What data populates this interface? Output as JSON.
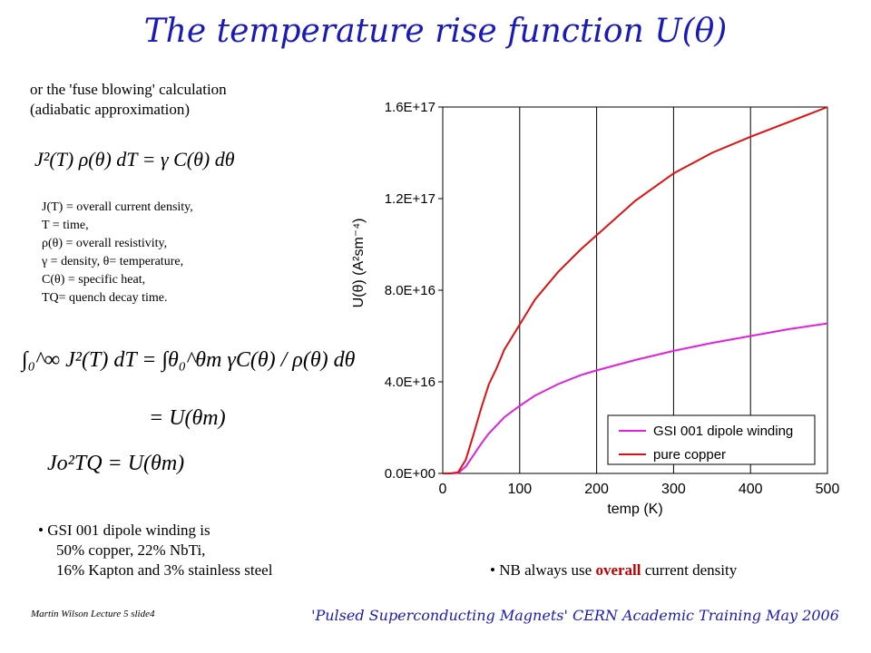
{
  "slide": {
    "title": "The temperature rise function U(θ)",
    "intro_line1": "or the 'fuse blowing' calculation",
    "intro_line2": "(adiabatic approximation)",
    "equation1": "J²(T) ρ(θ) dT = γ C(θ) dθ",
    "definitions": [
      "J(T) = overall current density,",
      "T = time,",
      "ρ(θ) = overall resistivity,",
      "γ = density, θ= temperature,",
      "C(θ) = specific heat,",
      "TQ= quench decay time."
    ],
    "equation2": "∫₀^∞ J²(T) dT = ∫θ₀^θm γC(θ) / ρ(θ) dθ",
    "equation3": "= U(θm)",
    "equation4": "Jo²TQ = U(θm)",
    "bullet1": [
      "GSI 001 dipole winding is",
      "50% copper, 22% NbTi,",
      "16% Kapton and 3% stainless steel"
    ],
    "bullet2_pre": "NB always use ",
    "bullet2_em": "overall",
    "bullet2_post": " current density",
    "footer_left": "Martin Wilson Lecture 5 slide4",
    "footer_right": "'Pulsed Superconducting Magnets' CERN Academic Training May 2006"
  },
  "chart_data": {
    "type": "line",
    "xlabel": "temp (K)",
    "ylabel": "U(θ) (A²sm⁻⁴)",
    "xlim": [
      0,
      500
    ],
    "ylim": [
      0,
      1.6e+17
    ],
    "xticks": [
      "0",
      "100",
      "200",
      "300",
      "400",
      "500"
    ],
    "yticks": [
      "0.0E+00",
      "4.0E+16",
      "8.0E+16",
      "1.2E+17",
      "1.6E+17"
    ],
    "grid": "vertical",
    "legend_position": "lower-right",
    "series": [
      {
        "name": "GSI 001 dipole winding",
        "color": "#e020e0",
        "x": [
          0,
          10,
          20,
          30,
          40,
          50,
          60,
          70,
          80,
          100,
          120,
          150,
          180,
          200,
          250,
          300,
          350,
          400,
          450,
          500
        ],
        "y": [
          0,
          0,
          200000000000000.0,
          3000000000000000.0,
          8000000000000000.0,
          1.3e+16,
          1.75e+16,
          2.1e+16,
          2.45e+16,
          2.95e+16,
          3.4e+16,
          3.9e+16,
          4.3e+16,
          4.5e+16,
          4.95e+16,
          5.35e+16,
          5.7e+16,
          6e+16,
          6.3e+16,
          6.55e+16
        ]
      },
      {
        "name": "pure copper",
        "color": "#e01010",
        "x": [
          0,
          10,
          20,
          30,
          40,
          50,
          60,
          70,
          80,
          100,
          120,
          150,
          180,
          200,
          250,
          300,
          350,
          400,
          450,
          500
        ],
        "y": [
          0,
          0,
          500000000000000.0,
          6000000000000000.0,
          1.7e+16,
          2.85e+16,
          3.9e+16,
          4.6e+16,
          5.4e+16,
          6.5e+16,
          7.6e+16,
          8.8e+16,
          9.8e+16,
          1.04e+17,
          1.19e+17,
          1.31e+17,
          1.4e+17,
          1.47e+17,
          1.535e+17,
          1.6e+17
        ]
      }
    ]
  }
}
